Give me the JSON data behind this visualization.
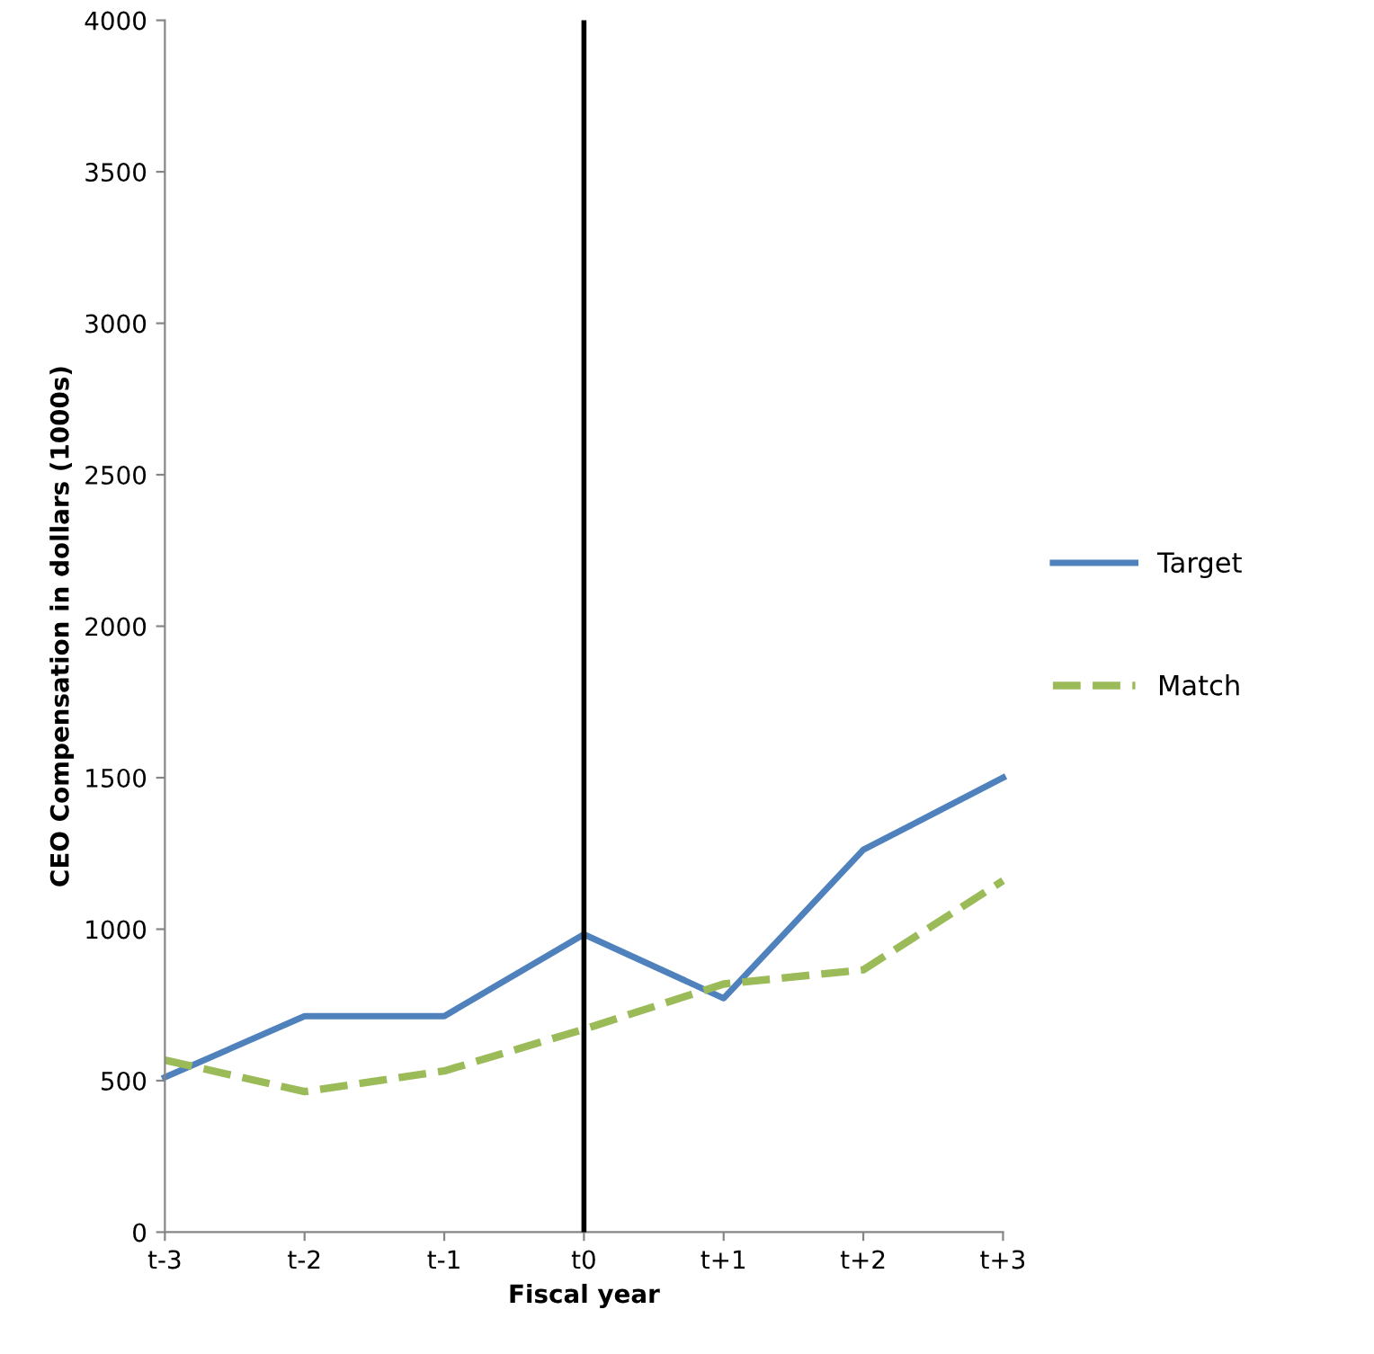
{
  "chart_data": {
    "type": "line",
    "xlabel": "Fiscal year",
    "ylabel": "CEO Compensation in dollars (1000s)",
    "categories": [
      "t-3",
      "t-2",
      "t-1",
      "t0",
      "t+1",
      "t+2",
      "t+3"
    ],
    "series": [
      {
        "name": "Target",
        "color": "#4f81bd",
        "line_style": "solid",
        "values": [
          511,
          713,
          713,
          983,
          772,
          1262,
          1500
        ]
      },
      {
        "name": "Match",
        "color": "#9bbb59",
        "line_style": "dashed",
        "values": [
          568,
          464,
          532,
          670,
          819,
          866,
          1160
        ]
      }
    ],
    "ref_lines": [
      {
        "axis": "x",
        "value": "t0",
        "color": "#000000",
        "line_style": "solid"
      }
    ],
    "ylim": [
      0,
      4000
    ],
    "yticks": [
      0,
      500,
      1000,
      1500,
      2000,
      2500,
      3000,
      3500,
      4000
    ],
    "grid": false,
    "legend": "right",
    "marker": "none"
  }
}
